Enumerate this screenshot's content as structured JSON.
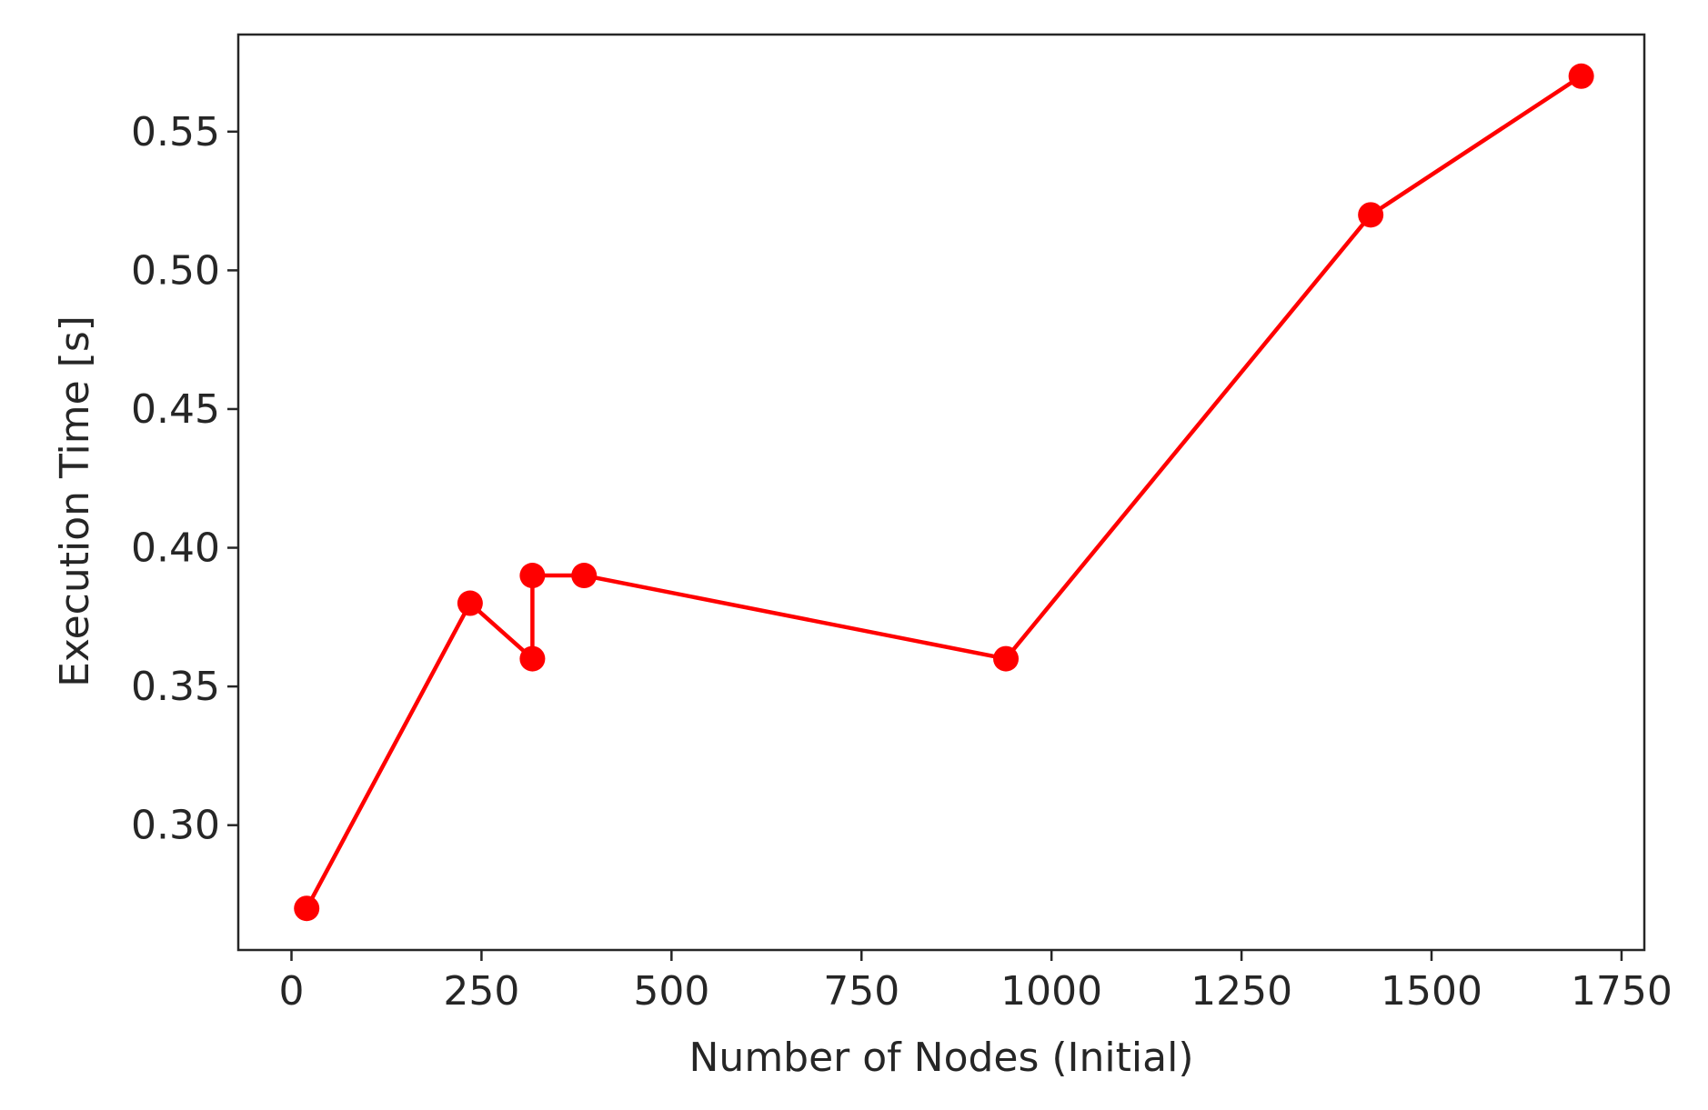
{
  "chart_data": {
    "type": "line",
    "title": "",
    "xlabel": "Number of Nodes (Initial)",
    "ylabel": "Execution Time [s]",
    "xlim": [
      -70,
      1780
    ],
    "ylim": [
      0.255,
      0.585
    ],
    "xticks": [
      0,
      250,
      500,
      750,
      1000,
      1250,
      1500,
      1750
    ],
    "yticks": [
      0.3,
      0.35,
      0.4,
      0.45,
      0.5,
      0.55
    ],
    "ytick_labels": [
      "0.30",
      "0.35",
      "0.40",
      "0.45",
      "0.50",
      "0.55"
    ],
    "grid": false,
    "series": [
      {
        "color": "#ff0000",
        "marker": "circle",
        "x": [
          20,
          235,
          317,
          317,
          385,
          940,
          1420,
          1697
        ],
        "y": [
          0.27,
          0.38,
          0.36,
          0.39,
          0.39,
          0.36,
          0.52,
          0.57
        ]
      }
    ]
  }
}
